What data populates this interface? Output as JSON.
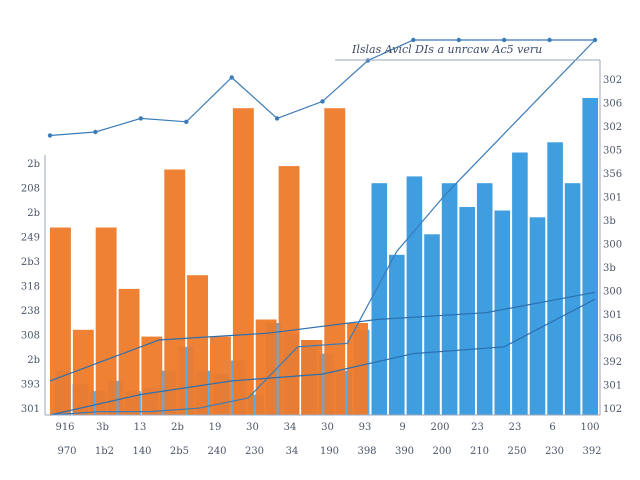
{
  "chart_data": {
    "type": "bar",
    "title": "Ilslas Avicl DIs a unrcaw Ac5 veru",
    "xlabel": "",
    "ylabel": "",
    "ylim": [
      0,
      100
    ],
    "grid": false,
    "legend": "none",
    "x_ticks_top": [
      "916",
      "3b",
      "13",
      "2b",
      "19",
      "30",
      "34",
      "30",
      "93",
      "9",
      "200",
      "23",
      "23",
      "6",
      "100"
    ],
    "x_ticks_bottom": [
      "970",
      "1b2",
      "140",
      "2b5",
      "240",
      "230",
      "34",
      "190",
      "398",
      "390",
      "200",
      "210",
      "250",
      "230",
      "392"
    ],
    "y_ticks_left": [
      "301",
      "393",
      "2b",
      "308",
      "238",
      "318",
      "2b3",
      "249",
      "2b",
      "208",
      "2b"
    ],
    "y_ticks_right": [
      "102",
      "301",
      "392",
      "306",
      "301",
      "300",
      "3b",
      "300",
      "3b",
      "301",
      "356",
      "305",
      "302",
      "306",
      "302"
    ],
    "orange_bars": {
      "color": "#ee7a2a",
      "values": [
        55,
        25,
        55,
        37,
        23,
        72,
        41,
        23,
        90,
        28,
        73,
        22,
        90,
        27
      ]
    },
    "blue_bars": {
      "color": "#3f9ee0",
      "values": [
        13,
        9,
        7,
        10,
        7,
        8,
        13,
        20,
        13,
        12,
        16,
        6,
        27,
        24,
        22,
        18,
        13,
        25,
        68,
        47,
        70,
        53,
        68,
        61,
        68,
        60,
        77,
        58,
        80,
        68,
        93
      ]
    },
    "lines": [
      {
        "color": "#3b7bb8",
        "values": [
          82,
          83,
          87,
          86,
          99,
          87,
          92,
          104,
          110,
          110,
          110,
          110,
          110
        ]
      },
      {
        "color": "#3b7bb8",
        "values": [
          0,
          1,
          1,
          2,
          5,
          20,
          21,
          48,
          65,
          80,
          95,
          110
        ]
      },
      {
        "color": "#2d6fae",
        "values": [
          10,
          22,
          24,
          28,
          30,
          36
        ]
      },
      {
        "color": "#2d6fae",
        "values": [
          0,
          6,
          10,
          12,
          18,
          20,
          34
        ]
      }
    ]
  }
}
